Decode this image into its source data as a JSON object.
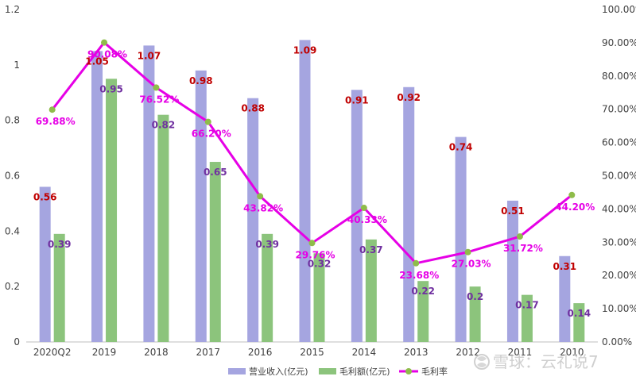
{
  "chart_data": {
    "type": "bar",
    "categories": [
      "2020Q2",
      "2019",
      "2018",
      "2017",
      "2016",
      "2015",
      "2014",
      "2013",
      "2012",
      "2011",
      "2010"
    ],
    "series": [
      {
        "name": "营业收入(亿元)",
        "kind": "bar",
        "axis": "left",
        "color": "#a5a5e0",
        "values": [
          0.56,
          1.05,
          1.07,
          0.98,
          0.88,
          1.09,
          0.91,
          0.92,
          0.74,
          0.51,
          0.31
        ],
        "labels": [
          "0.56",
          "1.05",
          "1.07",
          "0.98",
          "0.88",
          "1.09",
          "0.91",
          "0.92",
          "0.74",
          "0.51",
          "0.31"
        ]
      },
      {
        "name": "毛利额(亿元)",
        "kind": "bar",
        "axis": "left",
        "color": "#8cc47c",
        "values": [
          0.39,
          0.95,
          0.82,
          0.65,
          0.39,
          0.32,
          0.37,
          0.22,
          0.2,
          0.17,
          0.14
        ],
        "labels": [
          "0.39",
          "0.95",
          "0.82",
          "0.65",
          "0.39",
          "0.32",
          "0.37",
          "0.22",
          "0.2",
          "0.17",
          "0.14"
        ]
      },
      {
        "name": "毛利率",
        "kind": "line",
        "axis": "right",
        "color": "#e600e6",
        "marker_color": "#8fbc4a",
        "values": [
          69.88,
          90.08,
          76.52,
          66.2,
          43.82,
          29.76,
          40.33,
          23.68,
          27.03,
          31.72,
          44.2
        ],
        "labels": [
          "69.88%",
          "90.08%",
          "76.52%",
          "66.20%",
          "43.82%",
          "29.76%",
          "40.33%",
          "23.68%",
          "27.03%",
          "31.72%",
          "44.20%"
        ]
      }
    ],
    "y_left": {
      "ylim": [
        0,
        1.2
      ],
      "ticks": [
        "0",
        "0.2",
        "0.4",
        "0.6",
        "0.8",
        "1",
        "1.2"
      ]
    },
    "y_right": {
      "ylim": [
        0,
        100
      ],
      "ticks": [
        "0.00%",
        "10.00%",
        "20.00%",
        "30.00%",
        "40.00%",
        "50.00%",
        "60.00%",
        "70.00%",
        "80.00%",
        "90.00%",
        "100.00%"
      ]
    },
    "grid": false,
    "legend": "bottom-center"
  },
  "watermark": {
    "text": "雪球：云礼说7",
    "icon": "snowball-logo-icon"
  }
}
